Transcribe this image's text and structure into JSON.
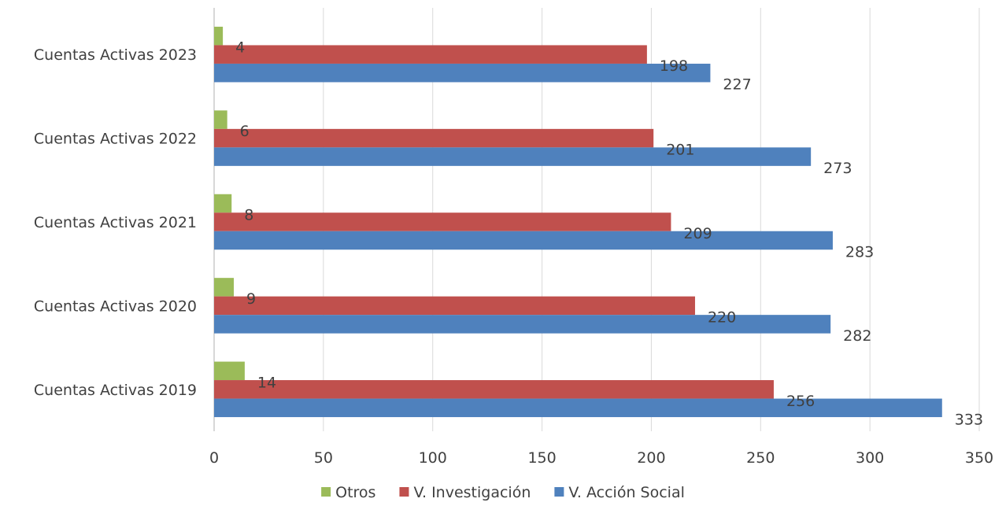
{
  "chart_data": {
    "type": "bar",
    "orientation": "horizontal",
    "categories": [
      "Cuentas Activas 2023",
      "Cuentas Activas 2022",
      "Cuentas Activas 2021",
      "Cuentas Activas 2020",
      "Cuentas Activas 2019"
    ],
    "series": [
      {
        "name": "Otros",
        "color": "#9BBB59",
        "values": [
          4,
          6,
          8,
          9,
          14
        ]
      },
      {
        "name": "V. Investigación",
        "color": "#C0504D",
        "values": [
          198,
          201,
          209,
          220,
          256
        ]
      },
      {
        "name": "V. Acción Social",
        "color": "#4F81BD",
        "values": [
          227,
          273,
          283,
          282,
          333
        ]
      }
    ],
    "xlim": [
      0,
      350
    ],
    "xticks": [
      0,
      50,
      100,
      150,
      200,
      250,
      300,
      350
    ],
    "grid": "vertical",
    "legend": "bottom",
    "data_labels": true
  }
}
